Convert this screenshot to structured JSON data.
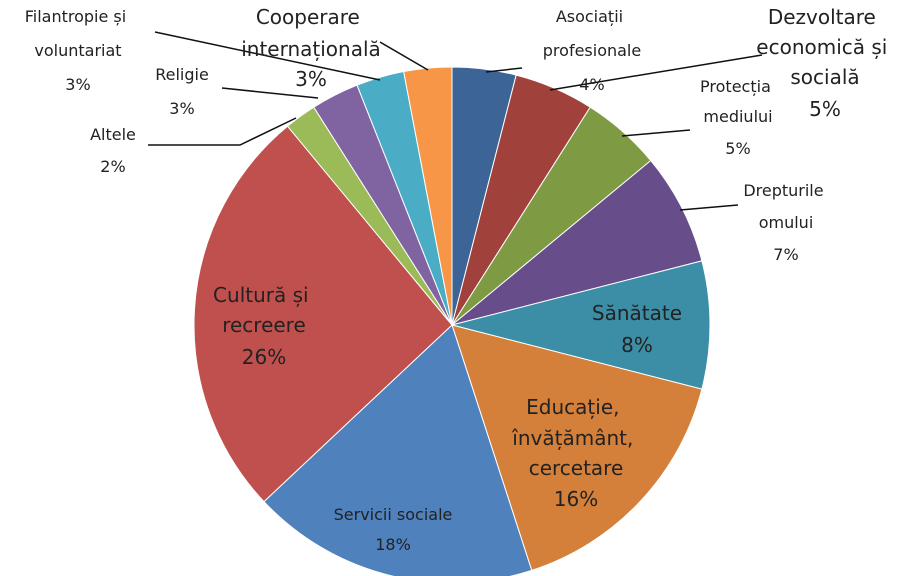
{
  "chart_data": {
    "type": "pie",
    "categories": [
      "Asociații profesionale",
      "Dezvoltare economică și socială",
      "Protecția mediului",
      "Drepturile omului",
      "Sănătate",
      "Educație, învățământ, cercetare",
      "Servicii sociale",
      "Cultură și recreere",
      "Altele",
      "Religie",
      "Filantropie și voluntariat",
      "Cooperare internațională"
    ],
    "values": [
      4,
      5,
      5,
      7,
      8,
      16,
      18,
      26,
      2,
      3,
      3,
      3
    ],
    "value_labels": [
      "4%",
      "5%",
      "5%",
      "7%",
      "8%",
      "16%",
      "18%",
      "26%",
      "2%",
      "3%",
      "3%",
      "3%"
    ],
    "colors": [
      "#3c6496",
      "#a0413c",
      "#7e9a43",
      "#674e8a",
      "#3b8ea5",
      "#d4803a",
      "#4f81bd",
      "#c0504d",
      "#9bbb59",
      "#8064a2",
      "#4bacc6",
      "#f79646"
    ]
  }
}
